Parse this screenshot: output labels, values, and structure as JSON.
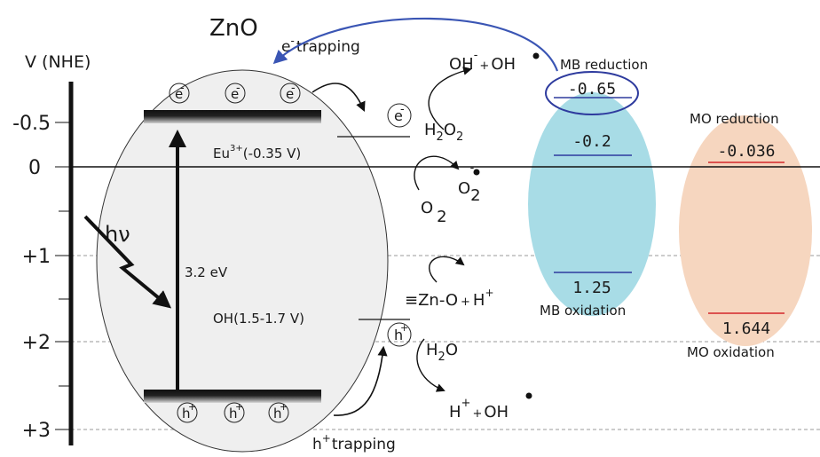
{
  "axis": {
    "title": "V (NHE)",
    "ticks": [
      "-0.5",
      "0",
      "+1",
      "+2",
      "+3"
    ]
  },
  "semiconductor": {
    "name": "ZnO",
    "electron": "e",
    "electron_charge": "-",
    "hole": "h",
    "hole_charge": "+",
    "band_gap": "3.2 eV",
    "photon": "hν"
  },
  "labels": {
    "e_trapping_e": "e",
    "e_trapping_minus": "-",
    "e_trapping_text": "trapping",
    "h_trapping_h": "h",
    "h_trapping_plus": "+",
    "h_trapping_text": "trapping",
    "eu_main": "Eu",
    "eu_sup": "3+",
    "eu_value": "(-0.35 V)",
    "oh_level": "OH(1.5-1.7 V)"
  },
  "reactions": {
    "oh_minus": "OH",
    "oh_minus_charge": "-",
    "plus1": "+",
    "oh_radical": "OH",
    "h2o2_h": "H",
    "h2o2_2a": "2",
    "h2o2_o": "O",
    "h2o2_2b": "2",
    "o2_o": "O",
    "o2_2": "2",
    "o2rad_o": "O",
    "o2rad_2": "2",
    "o2rad_charge": "-",
    "zn_text": "≡Zn-O",
    "plus2": "+",
    "zn_h": "H",
    "zn_h_charge": "+",
    "h2o_h": "H",
    "h2o_2": "2",
    "h2o_o": "O",
    "hplus_h": "H",
    "hplus_charge": "+",
    "plus3": "+",
    "oh_radical2": "OH"
  },
  "mb": {
    "reduction_label": "MB reduction",
    "oxidation_label": "MB oxidation",
    "levels": [
      "-0.65",
      "-0.2",
      "1.25"
    ],
    "fill": "#a8dce6",
    "line_color": "#2e3b9e"
  },
  "mo": {
    "reduction_label": "MO reduction",
    "oxidation_label": "MO oxidation",
    "levels": [
      "-0.036",
      "1.644"
    ],
    "fill": "#f6d6bf",
    "line_color": "#d4262a"
  },
  "colors": {
    "trap_arrow": "#3a55b4"
  }
}
